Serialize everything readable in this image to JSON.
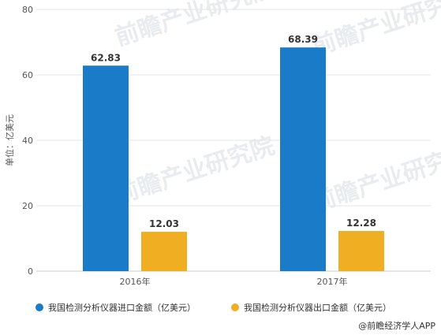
{
  "chart_data": {
    "type": "bar",
    "categories": [
      "2016年",
      "2017年"
    ],
    "series": [
      {
        "name": "我国检测分析仪器进口金额（亿美元）",
        "values": [
          62.83,
          68.39
        ],
        "color": "#1a7bc9"
      },
      {
        "name": "我国检测分析仪器出口金额（亿美元）",
        "values": [
          12.03,
          12.28
        ],
        "color": "#f0ae22"
      }
    ],
    "data_labels": [
      [
        "62.83",
        "68.39"
      ],
      [
        "12.03",
        "12.28"
      ]
    ],
    "ylabel": "单位：亿美元",
    "ylim": [
      0,
      80
    ],
    "yticks": [
      0,
      20,
      40,
      60,
      80
    ],
    "grid": true,
    "legend_position": "bottom-left"
  },
  "credit": {
    "text": "@前瞻经济学人APP"
  },
  "watermark": {
    "text": "前瞻产业研究院"
  }
}
